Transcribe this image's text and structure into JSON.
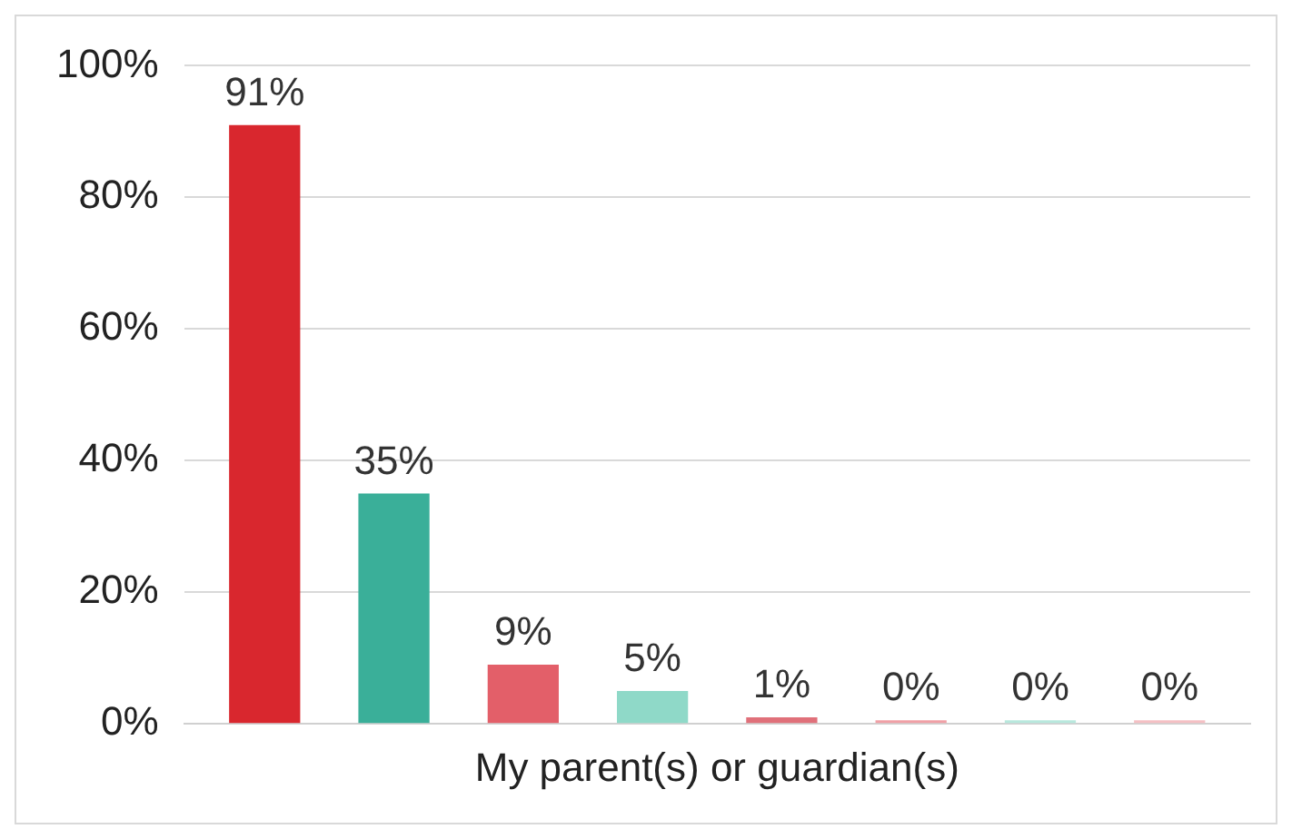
{
  "chart_data": {
    "type": "bar",
    "categories": [
      "My parent(s) or guardian(s)"
    ],
    "series": [
      {
        "color": "#d9272e",
        "values": [
          91
        ],
        "value_labels": [
          "91%"
        ]
      },
      {
        "color": "#3aaf99",
        "values": [
          35
        ],
        "value_labels": [
          "35%"
        ]
      },
      {
        "color": "#e35f69",
        "values": [
          9
        ],
        "value_labels": [
          "9%"
        ]
      },
      {
        "color": "#8fd9c8",
        "values": [
          5
        ],
        "value_labels": [
          "5%"
        ]
      },
      {
        "color": "#e0707a",
        "values": [
          1
        ],
        "value_labels": [
          "1%"
        ]
      },
      {
        "color": "#f0a0a6",
        "values": [
          0
        ],
        "value_labels": [
          "0%"
        ]
      },
      {
        "color": "#b8e8dd",
        "values": [
          0
        ],
        "value_labels": [
          "0%"
        ]
      },
      {
        "color": "#f5c0c4",
        "values": [
          0
        ],
        "value_labels": [
          "0%"
        ]
      }
    ],
    "ylim": [
      0,
      100
    ],
    "yticks": [
      {
        "value": 0,
        "label": "0%"
      },
      {
        "value": 20,
        "label": "20%"
      },
      {
        "value": 40,
        "label": "40%"
      },
      {
        "value": 60,
        "label": "60%"
      },
      {
        "value": 80,
        "label": "80%"
      },
      {
        "value": 100,
        "label": "100%"
      }
    ],
    "grid": "y",
    "legend": false
  }
}
